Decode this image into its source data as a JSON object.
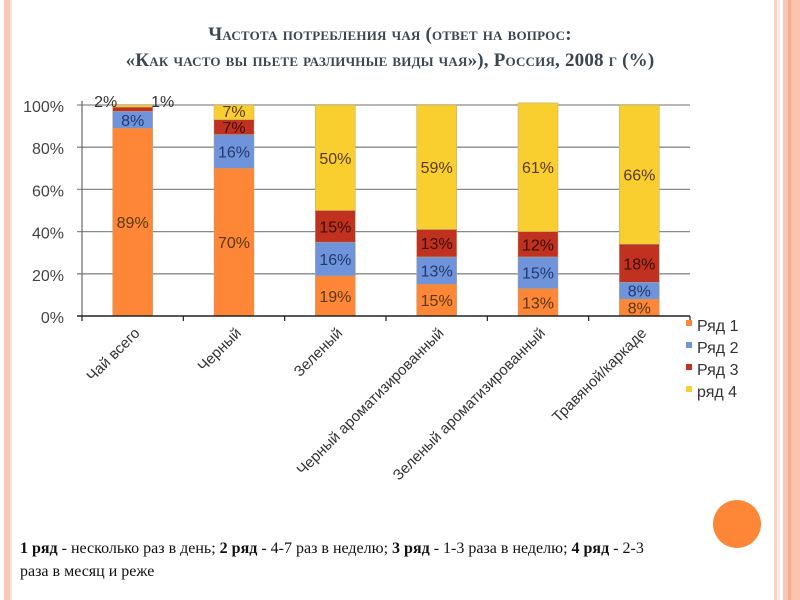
{
  "slide": {
    "title_line1": "Частота потребления чая (ответ на вопрос:",
    "title_line2": "«Как часто вы пьете различные виды чая»), Россия, 2008 г (%)",
    "note": [
      {
        "bold": "1 ряд",
        "text": " - несколько раз в день; "
      },
      {
        "bold": "2 ряд",
        "text": " -  4-7 раз в неделю; "
      },
      {
        "bold": "3 ряд",
        "text": " - 1-3 раза в неделю; "
      },
      {
        "bold": "4 ряд",
        "text": " -  2-3 раза в месяц и реже"
      }
    ],
    "accent_colors": {
      "stripe": "#f9c8b6",
      "circle": "#fd8637"
    }
  },
  "chart_data": {
    "type": "bar",
    "stacked": true,
    "percent_stacked": true,
    "title": "Частота потребления чая (ответ на вопрос: «Как часто вы пьете различные виды чая»), Россия, 2008 г (%)",
    "xlabel": "",
    "ylabel": "",
    "ylim": [
      0,
      100
    ],
    "yticks": [
      "0%",
      "20%",
      "40%",
      "60%",
      "80%",
      "100%"
    ],
    "grid": true,
    "legend_position": "right",
    "categories": [
      "Чай  всего",
      "Черный",
      "Зеленый",
      "Черный ароматизированный",
      "Зеленый ароматизированный",
      "Травяной/каркаде"
    ],
    "series": [
      {
        "name": "Ряд 1",
        "color": "#fd8637",
        "values": [
          89,
          70,
          19,
          15,
          13,
          8
        ]
      },
      {
        "name": "Ряд 2",
        "color": "#6f94dc",
        "values": [
          8,
          16,
          16,
          13,
          15,
          8
        ]
      },
      {
        "name": "Ряд 3",
        "color": "#c0311f",
        "values": [
          2,
          7,
          15,
          13,
          12,
          18
        ]
      },
      {
        "name": "ряд 4",
        "color": "#f8cf2e",
        "values": [
          1,
          7,
          50,
          59,
          61,
          66
        ]
      }
    ]
  }
}
